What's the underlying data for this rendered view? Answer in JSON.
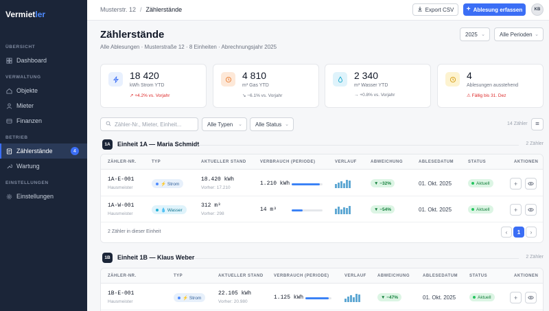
{
  "brand": {
    "name_a": "Vermiet",
    "name_b": "ler"
  },
  "sidebar": {
    "sections": [
      "ÜBERSICHT",
      "VERWALTUNG",
      "BETRIEB",
      "EINSTELLUNGEN"
    ],
    "items": [
      {
        "label": "Dashboard"
      },
      {
        "label": "Objekte"
      },
      {
        "label": "Mieter"
      },
      {
        "label": "Finanzen"
      },
      {
        "label": "Zählerstände",
        "badge": "4"
      },
      {
        "label": "Wartung"
      },
      {
        "label": "Einstellungen"
      }
    ]
  },
  "topbar": {
    "breadcrumb": [
      "Musterstr. 12",
      "Zählerstände"
    ],
    "export_label": "Export CSV",
    "primary_label": "Ablesung erfassen",
    "avatar": "KB"
  },
  "page": {
    "title": "Zählerstände",
    "subtitle": "Alle Ablesungen · Musterstraße 12 · 8 Einheiten · Abrechnungsjahr 2025",
    "year": "2025",
    "period": "Alle Perioden"
  },
  "kpis": [
    {
      "value": "18 420",
      "label": "kWh Strom YTD",
      "delta": "↗ +4.2% vs. Vorjahr",
      "color": "#dc2626"
    },
    {
      "value": "4 810",
      "label": "m³ Gas YTD",
      "delta": "↘ −6.1% vs. Vorjahr",
      "color": "#6b7280"
    },
    {
      "value": "2 340",
      "label": "m³ Wasser YTD",
      "delta": "→ +0.8% vs. Vorjahr",
      "color": "#6b7280"
    },
    {
      "value": "4",
      "label": "Ablesungen ausstehend",
      "delta": "⚠ Fällig bis 31. Dez",
      "color": "#dc2626"
    }
  ],
  "filters": {
    "search_placeholder": "Zähler-Nr., Mieter, Einheit...",
    "type": "Alle Typen",
    "status": "Alle Status",
    "count": "14 Zähler"
  },
  "columns": [
    "ZÄHLER-NR.",
    "TYP",
    "AKTUELLER STAND",
    "VERBRAUCH (PERIODE)",
    "VERLAUF",
    "ABWEICHUNG",
    "ABLESEDATUM",
    "STATUS",
    "AKTIONEN"
  ],
  "units": [
    {
      "chip": "1A",
      "name": "Einheit 1A — Maria Schmidt",
      "count": "2 Zähler",
      "footer": "2 Zähler in dieser Einheit",
      "page": "1",
      "rows": [
        {
          "id": "1A-E-001",
          "location": "Hausmeister",
          "type": "⚡ Strom",
          "reading": "18.420 kWh",
          "previous": "Vorher: 17.210",
          "consumption": "1.210 kWh",
          "consumption_share": 0.92,
          "deviation": "▼ −32%",
          "date": "01. Okt. 2025",
          "status": "Aktuell"
        },
        {
          "id": "1A-W-001",
          "location": "Hausmeister",
          "type": "💧 Wasser",
          "reading": "312 m³",
          "previous": "Vorher: 298",
          "consumption": "14 m³",
          "consumption_share": 0.35,
          "deviation": "▼ −54%",
          "date": "01. Okt. 2025",
          "status": "Aktuell"
        }
      ]
    },
    {
      "chip": "1B",
      "name": "Einheit 1B — Klaus Weber",
      "count": "2 Zähler",
      "rows": [
        {
          "id": "1B-E-001",
          "location": "Hausmeister",
          "type": "⚡ Strom",
          "reading": "22.105 kWh",
          "previous": "Vorher: 20.980",
          "consumption": "1.125 kWh",
          "consumption_share": 0.9,
          "deviation": "▼ −47%",
          "date": "01. Okt. 2025",
          "status": "Aktuell"
        }
      ]
    }
  ]
}
